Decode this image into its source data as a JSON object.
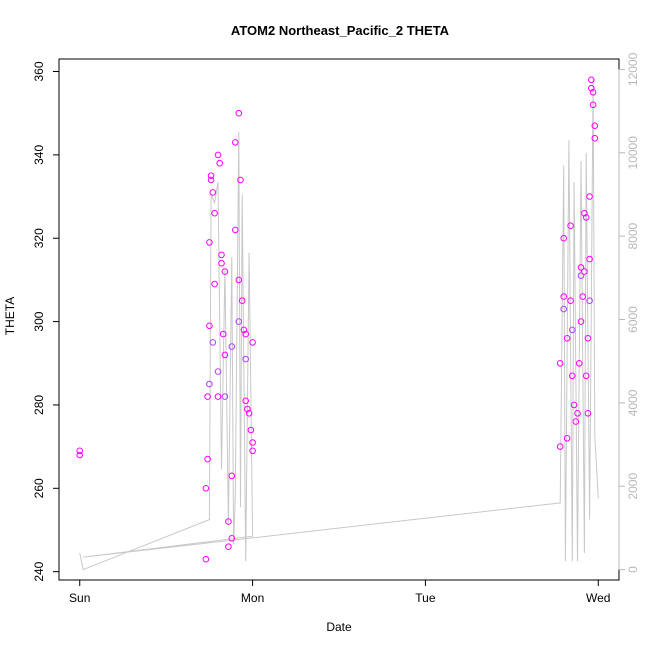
{
  "chart_data": {
    "type": "scatter",
    "title": "ATOM2 Northeast_Pacific_2 THETA",
    "xlabel": "Date",
    "ylabel": "THETA",
    "x_tick_labels": [
      "Sun",
      "Mon",
      "Tue",
      "Wed"
    ],
    "x_tick_positions_days": [
      0,
      1,
      2,
      3
    ],
    "xlim_days": [
      -0.12,
      3.12
    ],
    "ylim": [
      238,
      363
    ],
    "y_ticks": [
      240,
      260,
      280,
      300,
      320,
      340,
      360
    ],
    "y2lim": [
      -250,
      12250
    ],
    "y2_ticks": [
      0,
      2000,
      4000,
      6000,
      8000,
      10000,
      12000
    ],
    "grid": false,
    "series": [
      {
        "kind": "points",
        "color": "#ff00ff",
        "x": [
          0.0,
          0.0,
          0.73,
          0.73,
          0.74,
          0.74,
          0.75,
          0.75,
          0.76,
          0.76,
          0.77,
          0.78,
          0.78,
          0.8,
          0.8,
          0.81,
          0.82,
          0.82,
          0.83,
          0.84,
          0.84,
          0.86,
          0.86,
          0.88,
          0.88,
          0.9,
          0.9,
          0.92,
          0.92,
          0.93,
          0.94,
          0.95,
          0.96,
          0.96,
          0.97,
          0.98,
          0.99,
          1.0,
          1.0,
          1.0,
          2.78,
          2.78,
          2.8,
          2.8,
          2.82,
          2.82,
          2.84,
          2.84,
          2.85,
          2.86,
          2.87,
          2.88,
          2.89,
          2.9,
          2.9,
          2.91,
          2.92,
          2.92,
          2.93,
          2.93,
          2.94,
          2.94,
          2.95,
          2.95,
          2.96,
          2.96,
          2.97,
          2.97,
          2.98,
          2.98
        ],
        "y": [
          269,
          268,
          243,
          260,
          267,
          282,
          299,
          319,
          335,
          334,
          331,
          326,
          309,
          282,
          340,
          338,
          316,
          314,
          297,
          312,
          292,
          252,
          246,
          263,
          248,
          322,
          343,
          350,
          310,
          334,
          305,
          298,
          297,
          281,
          279,
          278,
          274,
          271,
          269,
          295,
          270,
          290,
          306,
          320,
          296,
          272,
          323,
          305,
          287,
          280,
          276,
          278,
          290,
          300,
          313,
          306,
          312,
          326,
          325,
          287,
          296,
          278,
          315,
          330,
          358,
          356,
          355,
          352,
          347,
          344
        ]
      },
      {
        "kind": "points",
        "color": "#b040ff",
        "x": [
          0.75,
          0.77,
          0.8,
          0.84,
          0.88,
          0.92,
          0.96,
          2.8,
          2.85,
          2.9,
          2.95
        ],
        "y": [
          285,
          295,
          288,
          282,
          294,
          300,
          291,
          303,
          298,
          311,
          305
        ]
      },
      {
        "kind": "line",
        "color": "#c8c8c8",
        "axis": "right",
        "x": [
          0.0,
          0.02,
          0.75,
          0.76,
          0.78,
          0.8,
          0.82,
          0.84,
          0.86,
          0.88,
          0.89,
          0.9,
          0.92,
          0.93,
          0.94,
          0.96,
          0.98,
          1.0,
          0.02,
          2.78,
          2.8,
          2.81,
          2.83,
          2.85,
          2.86,
          2.88,
          2.9,
          2.92,
          2.93,
          2.95,
          2.97,
          2.98,
          3.0
        ],
        "y": [
          400,
          0,
          1200,
          9000,
          8800,
          9300,
          2400,
          7200,
          1100,
          7500,
          600,
          1800,
          10500,
          1500,
          9000,
          200,
          7600,
          800,
          300,
          1600,
          9700,
          200,
          10300,
          200,
          9300,
          200,
          9800,
          400,
          10000,
          1200,
          11800,
          3200,
          1700
        ]
      }
    ]
  }
}
